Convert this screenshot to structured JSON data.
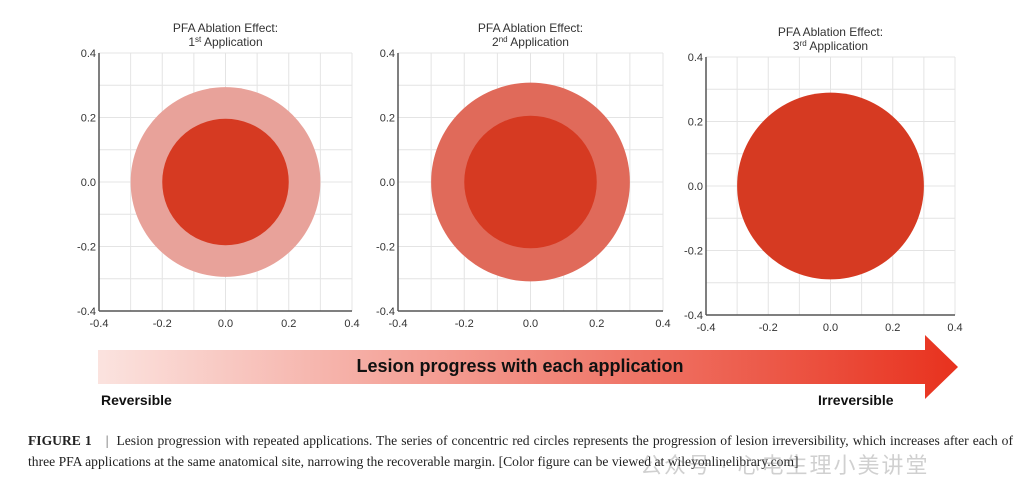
{
  "chart_data": [
    {
      "type": "scatter",
      "title": "PFA Ablation Effect:",
      "subtitle_num": "1",
      "subtitle_sup": "st",
      "subtitle_rest": " Application",
      "xlim": [
        -0.4,
        0.4
      ],
      "ylim": [
        -0.4,
        0.4
      ],
      "ticks": [
        "-0.4",
        "-0.2",
        "0.0",
        "0.2",
        "0.4"
      ],
      "grid": true,
      "circles": [
        {
          "name": "reversible-margin",
          "radius": 0.3,
          "color": "#e8a29a"
        },
        {
          "name": "irreversible-lesion",
          "radius": 0.2,
          "color": "#d63a22"
        }
      ]
    },
    {
      "type": "scatter",
      "title": "PFA Ablation Effect:",
      "subtitle_num": "2",
      "subtitle_sup": "nd",
      "subtitle_rest": " Application",
      "xlim": [
        -0.4,
        0.4
      ],
      "ylim": [
        -0.4,
        0.4
      ],
      "ticks": [
        "-0.4",
        "-0.2",
        "0.0",
        "0.2",
        "0.4"
      ],
      "grid": true,
      "circles": [
        {
          "name": "reversible-margin",
          "radius": 0.3,
          "color": "#e06a5a"
        },
        {
          "name": "irreversible-lesion",
          "radius": 0.2,
          "color": "#d63a22"
        }
      ]
    },
    {
      "type": "scatter",
      "title": "PFA Ablation Effect:",
      "subtitle_num": "3",
      "subtitle_sup": "rd",
      "subtitle_rest": " Application",
      "xlim": [
        -0.4,
        0.4
      ],
      "ylim": [
        -0.4,
        0.4
      ],
      "ticks": [
        "-0.4",
        "-0.2",
        "0.0",
        "0.2",
        "0.4"
      ],
      "grid": true,
      "circles": [
        {
          "name": "irreversible-lesion",
          "radius": 0.3,
          "color": "#d63a22"
        }
      ]
    }
  ],
  "arrow": {
    "label": "Lesion progress with each application",
    "left_label": "Reversible",
    "right_label": "Irreversible",
    "start_color": "#fbe3df",
    "end_color": "#e8321e"
  },
  "caption": {
    "figure": "FIGURE 1",
    "separator": "|",
    "text": "Lesion progression with repeated applications. The series of concentric red circles represents the progression of lesion irreversibility, which increases after each of three PFA applications at the same anatomical site, narrowing the recoverable margin. [Color figure can be viewed at wileyonlinelibrary.com]"
  },
  "watermark": "公众号 · 心电生理小美讲堂"
}
